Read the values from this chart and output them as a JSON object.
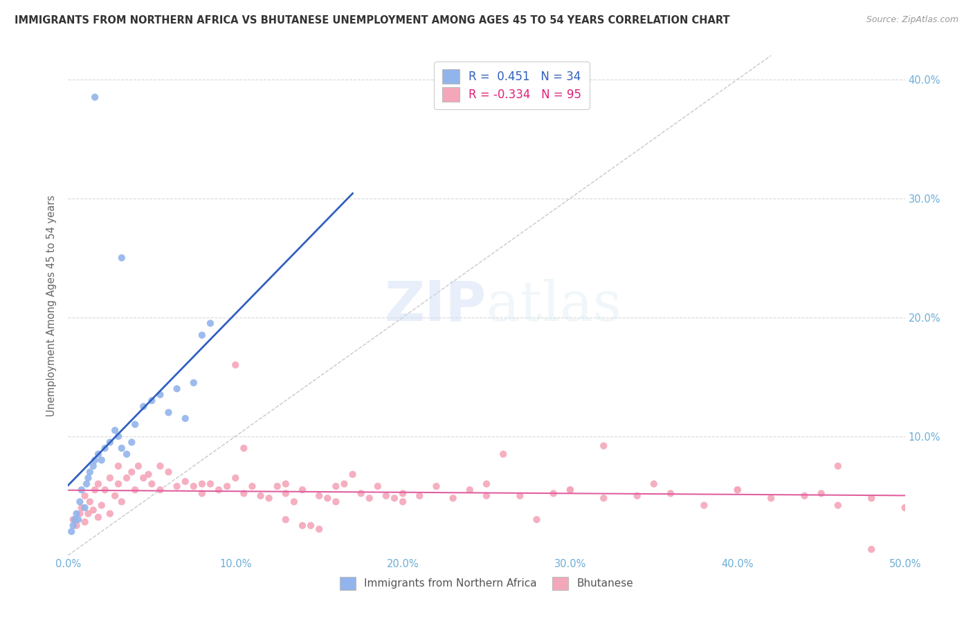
{
  "title": "IMMIGRANTS FROM NORTHERN AFRICA VS BHUTANESE UNEMPLOYMENT AMONG AGES 45 TO 54 YEARS CORRELATION CHART",
  "source": "Source: ZipAtlas.com",
  "ylabel": "Unemployment Among Ages 45 to 54 years",
  "xlim": [
    0.0,
    0.5
  ],
  "ylim": [
    0.0,
    0.42
  ],
  "blue_color": "#92B4EC",
  "pink_color": "#F4A7B9",
  "blue_line_color": "#3060C0",
  "pink_line_color": "#E060A0",
  "diag_color": "#C8C8C8",
  "R_blue": 0.451,
  "N_blue": 34,
  "R_pink": -0.334,
  "N_pink": 95,
  "legend_label_blue": "Immigrants from Northern Africa",
  "legend_label_pink": "Bhutanese",
  "tick_color": "#6baed6",
  "blue_x": [
    0.002,
    0.003,
    0.004,
    0.005,
    0.006,
    0.007,
    0.008,
    0.01,
    0.011,
    0.012,
    0.013,
    0.015,
    0.016,
    0.018,
    0.02,
    0.022,
    0.025,
    0.028,
    0.03,
    0.032,
    0.035,
    0.038,
    0.04,
    0.045,
    0.05,
    0.055,
    0.06,
    0.065,
    0.07,
    0.075,
    0.08,
    0.085,
    0.016,
    0.032
  ],
  "blue_y": [
    0.02,
    0.025,
    0.03,
    0.035,
    0.03,
    0.045,
    0.055,
    0.04,
    0.06,
    0.065,
    0.07,
    0.075,
    0.08,
    0.085,
    0.08,
    0.09,
    0.095,
    0.105,
    0.1,
    0.09,
    0.085,
    0.095,
    0.11,
    0.125,
    0.13,
    0.135,
    0.12,
    0.14,
    0.115,
    0.145,
    0.185,
    0.195,
    0.385,
    0.25
  ],
  "pink_x": [
    0.003,
    0.005,
    0.007,
    0.008,
    0.01,
    0.01,
    0.012,
    0.013,
    0.015,
    0.016,
    0.018,
    0.018,
    0.02,
    0.022,
    0.025,
    0.025,
    0.028,
    0.03,
    0.03,
    0.032,
    0.035,
    0.038,
    0.04,
    0.042,
    0.045,
    0.048,
    0.05,
    0.055,
    0.06,
    0.065,
    0.07,
    0.075,
    0.08,
    0.085,
    0.09,
    0.095,
    0.1,
    0.105,
    0.11,
    0.115,
    0.12,
    0.125,
    0.13,
    0.135,
    0.14,
    0.145,
    0.15,
    0.155,
    0.16,
    0.165,
    0.17,
    0.175,
    0.18,
    0.185,
    0.19,
    0.195,
    0.2,
    0.21,
    0.22,
    0.23,
    0.24,
    0.25,
    0.26,
    0.27,
    0.28,
    0.29,
    0.3,
    0.32,
    0.34,
    0.36,
    0.38,
    0.4,
    0.42,
    0.44,
    0.46,
    0.48,
    0.5,
    0.105,
    0.32,
    0.46,
    0.055,
    0.08,
    0.1,
    0.13,
    0.16,
    0.2,
    0.25,
    0.3,
    0.35,
    0.4,
    0.45,
    0.13,
    0.14,
    0.15,
    0.48
  ],
  "pink_y": [
    0.03,
    0.025,
    0.035,
    0.04,
    0.028,
    0.05,
    0.035,
    0.045,
    0.038,
    0.055,
    0.032,
    0.06,
    0.042,
    0.055,
    0.035,
    0.065,
    0.05,
    0.06,
    0.075,
    0.045,
    0.065,
    0.07,
    0.055,
    0.075,
    0.065,
    0.068,
    0.06,
    0.055,
    0.07,
    0.058,
    0.062,
    0.058,
    0.052,
    0.06,
    0.055,
    0.058,
    0.16,
    0.052,
    0.058,
    0.05,
    0.048,
    0.058,
    0.052,
    0.045,
    0.055,
    0.025,
    0.05,
    0.048,
    0.045,
    0.06,
    0.068,
    0.052,
    0.048,
    0.058,
    0.05,
    0.048,
    0.045,
    0.05,
    0.058,
    0.048,
    0.055,
    0.05,
    0.085,
    0.05,
    0.03,
    0.052,
    0.055,
    0.048,
    0.05,
    0.052,
    0.042,
    0.055,
    0.048,
    0.05,
    0.042,
    0.048,
    0.04,
    0.09,
    0.092,
    0.075,
    0.075,
    0.06,
    0.065,
    0.06,
    0.058,
    0.052,
    0.06,
    0.055,
    0.06,
    0.055,
    0.052,
    0.03,
    0.025,
    0.022,
    0.005
  ]
}
